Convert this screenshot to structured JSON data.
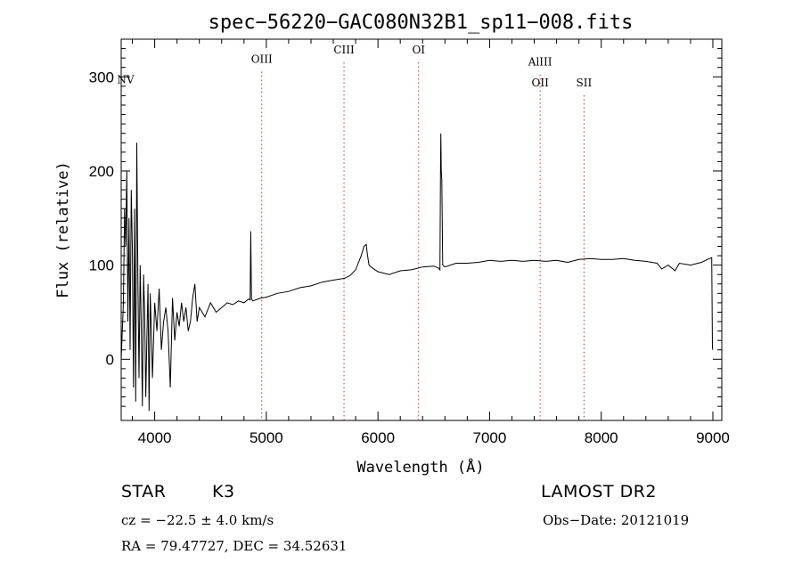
{
  "chart_data": {
    "type": "line",
    "title": "spec−56220−GAC080N32B1_sp11−008.fits",
    "xlabel": "Wavelength (Å)",
    "ylabel": "Flux (relative)",
    "xlim": [
      3700,
      9080
    ],
    "ylim": [
      -65,
      340
    ],
    "x_ticks": [
      4000,
      5000,
      6000,
      7000,
      8000,
      9000
    ],
    "y_ticks": [
      0,
      100,
      200,
      300
    ],
    "grid": false,
    "series": [
      {
        "points": [
          [
            3700,
            0
          ],
          [
            3720,
            60
          ],
          [
            3730,
            160
          ],
          [
            3740,
            120
          ],
          [
            3750,
            200
          ],
          [
            3760,
            40
          ],
          [
            3770,
            150
          ],
          [
            3780,
            10
          ],
          [
            3790,
            180
          ],
          [
            3800,
            120
          ],
          [
            3810,
            -30
          ],
          [
            3820,
            160
          ],
          [
            3830,
            -45
          ],
          [
            3840,
            230
          ],
          [
            3850,
            80
          ],
          [
            3860,
            -20
          ],
          [
            3870,
            100
          ],
          [
            3880,
            30
          ],
          [
            3890,
            -50
          ],
          [
            3900,
            90
          ],
          [
            3910,
            50
          ],
          [
            3920,
            -40
          ],
          [
            3930,
            20
          ],
          [
            3940,
            80
          ],
          [
            3950,
            -55
          ],
          [
            3960,
            70
          ],
          [
            3970,
            30
          ],
          [
            3980,
            -20
          ],
          [
            4000,
            60
          ],
          [
            4020,
            30
          ],
          [
            4040,
            75
          ],
          [
            4060,
            10
          ],
          [
            4080,
            40
          ],
          [
            4100,
            55
          ],
          [
            4120,
            30
          ],
          [
            4140,
            -30
          ],
          [
            4160,
            65
          ],
          [
            4180,
            20
          ],
          [
            4200,
            50
          ],
          [
            4220,
            35
          ],
          [
            4240,
            60
          ],
          [
            4260,
            40
          ],
          [
            4280,
            55
          ],
          [
            4300,
            30
          ],
          [
            4320,
            40
          ],
          [
            4340,
            65
          ],
          [
            4360,
            80
          ],
          [
            4380,
            40
          ],
          [
            4400,
            55
          ],
          [
            4450,
            45
          ],
          [
            4500,
            60
          ],
          [
            4550,
            50
          ],
          [
            4600,
            55
          ],
          [
            4650,
            60
          ],
          [
            4700,
            58
          ],
          [
            4750,
            62
          ],
          [
            4800,
            60
          ],
          [
            4840,
            64
          ],
          [
            4855,
            63
          ],
          [
            4861,
            136
          ],
          [
            4867,
            64
          ],
          [
            4880,
            62
          ],
          [
            4950,
            65
          ],
          [
            5000,
            66
          ],
          [
            5100,
            70
          ],
          [
            5200,
            72
          ],
          [
            5300,
            76
          ],
          [
            5400,
            78
          ],
          [
            5500,
            82
          ],
          [
            5600,
            84
          ],
          [
            5700,
            86
          ],
          [
            5750,
            89
          ],
          [
            5800,
            95
          ],
          [
            5850,
            110
          ],
          [
            5875,
            120
          ],
          [
            5895,
            122
          ],
          [
            5905,
            112
          ],
          [
            5920,
            100
          ],
          [
            5950,
            97
          ],
          [
            6000,
            93
          ],
          [
            6100,
            90
          ],
          [
            6200,
            94
          ],
          [
            6300,
            95
          ],
          [
            6400,
            98
          ],
          [
            6500,
            99
          ],
          [
            6540,
            97
          ],
          [
            6555,
            95
          ],
          [
            6560,
            195
          ],
          [
            6563,
            240
          ],
          [
            6567,
            200
          ],
          [
            6572,
            190
          ],
          [
            6580,
            100
          ],
          [
            6600,
            98
          ],
          [
            6700,
            102
          ],
          [
            6800,
            102
          ],
          [
            6900,
            103
          ],
          [
            7000,
            105
          ],
          [
            7100,
            104
          ],
          [
            7200,
            105
          ],
          [
            7300,
            104
          ],
          [
            7400,
            105
          ],
          [
            7500,
            104
          ],
          [
            7600,
            105
          ],
          [
            7700,
            103
          ],
          [
            7800,
            106
          ],
          [
            7900,
            107
          ],
          [
            8000,
            106
          ],
          [
            8100,
            106
          ],
          [
            8200,
            107
          ],
          [
            8300,
            105
          ],
          [
            8400,
            104
          ],
          [
            8500,
            102
          ],
          [
            8542,
            96
          ],
          [
            8600,
            100
          ],
          [
            8662,
            94
          ],
          [
            8700,
            102
          ],
          [
            8800,
            100
          ],
          [
            8900,
            103
          ],
          [
            8950,
            106
          ],
          [
            8990,
            108
          ],
          [
            8996,
            12
          ],
          [
            9000,
            10
          ]
        ]
      }
    ],
    "line_markers": [
      {
        "label": "NV",
        "x": 3740,
        "label_y": 293,
        "line": false
      },
      {
        "label": "OIII",
        "x": 4959,
        "label_y": 315,
        "line": true
      },
      {
        "label": "CIII",
        "x": 5696,
        "label_y": 325,
        "line": true
      },
      {
        "label": "OI",
        "x": 6364,
        "label_y": 325,
        "line": true
      },
      {
        "label": "AlIII",
        "x": 7453,
        "label_y": 312,
        "line": true
      },
      {
        "label": "OII",
        "x": 7453,
        "label_y": 290,
        "line": false
      },
      {
        "label": "SII",
        "x": 7846,
        "label_y": 290,
        "line": true
      }
    ]
  },
  "info": {
    "class_label": "STAR",
    "subclass": "K3",
    "survey": "LAMOST DR2",
    "cz": "cz = −22.5 ± 4.0 km/s",
    "obs_date": "Obs−Date: 20121019",
    "coords": "RA =  79.47727, DEC =  34.52631"
  }
}
